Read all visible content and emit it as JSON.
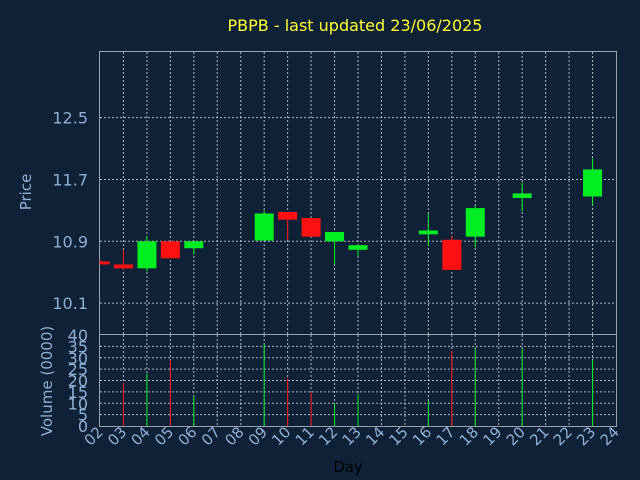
{
  "chart_data": {
    "type": "candlestick",
    "title": "PBPB - last updated 23/06/2025",
    "xlabel": "Day",
    "ylabel_price": "Price",
    "ylabel_volume": "Volume (0000)",
    "x_ticks": [
      "02",
      "03",
      "04",
      "05",
      "06",
      "07",
      "08",
      "09",
      "10",
      "11",
      "12",
      "13",
      "14",
      "15",
      "16",
      "17",
      "18",
      "19",
      "20",
      "21",
      "22",
      "23",
      "24"
    ],
    "price_yticks": [
      "10.1",
      "10.9",
      "11.7",
      "12.5"
    ],
    "volume_yticks": [
      "0",
      "5",
      "10",
      "15",
      "20",
      "25",
      "30",
      "35",
      "40"
    ],
    "price_ylim": [
      9.7,
      13.35
    ],
    "volume_ylim": [
      0,
      40
    ],
    "grid": true,
    "colors": {
      "up": "#00ee22",
      "down": "#ff1111",
      "background": "#0f2136",
      "title": "#ffff33",
      "text": "#8fb0d6"
    },
    "candles": [
      {
        "day": "02",
        "open": 10.64,
        "high": 10.66,
        "low": 10.6,
        "close": 10.6,
        "volume": 0
      },
      {
        "day": "03",
        "open": 10.6,
        "high": 10.79,
        "low": 10.53,
        "close": 10.55,
        "volume": 19
      },
      {
        "day": "04",
        "open": 10.55,
        "high": 10.97,
        "low": 10.51,
        "close": 10.9,
        "volume": 23
      },
      {
        "day": "05",
        "open": 10.9,
        "high": 10.9,
        "low": 10.68,
        "close": 10.68,
        "volume": 29
      },
      {
        "day": "06",
        "open": 10.81,
        "high": 10.9,
        "low": 10.73,
        "close": 10.9,
        "volume": 13
      },
      {
        "day": "09",
        "open": 10.91,
        "high": 11.3,
        "low": 10.91,
        "close": 11.26,
        "volume": 36
      },
      {
        "day": "10",
        "open": 11.28,
        "high": 11.28,
        "low": 10.92,
        "close": 11.18,
        "volume": 21
      },
      {
        "day": "11",
        "open": 11.2,
        "high": 11.2,
        "low": 10.96,
        "close": 10.96,
        "volume": 15
      },
      {
        "day": "12",
        "open": 10.9,
        "high": 11.02,
        "low": 10.6,
        "close": 11.02,
        "volume": 10
      },
      {
        "day": "13",
        "open": 10.79,
        "high": 10.86,
        "low": 10.7,
        "close": 10.85,
        "volume": 14
      },
      {
        "day": "16",
        "open": 10.99,
        "high": 11.26,
        "low": 10.84,
        "close": 11.04,
        "volume": 11
      },
      {
        "day": "17",
        "open": 10.92,
        "high": 10.97,
        "low": 10.53,
        "close": 10.53,
        "volume": 33
      },
      {
        "day": "18",
        "open": 10.96,
        "high": 11.36,
        "low": 10.82,
        "close": 11.33,
        "volume": 34
      },
      {
        "day": "20",
        "open": 11.46,
        "high": 11.66,
        "low": 11.29,
        "close": 11.52,
        "volume": 34
      },
      {
        "day": "23",
        "open": 11.48,
        "high": 11.97,
        "low": 11.37,
        "close": 11.83,
        "volume": 29
      }
    ]
  }
}
